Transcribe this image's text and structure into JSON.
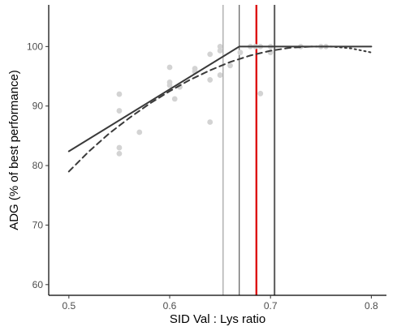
{
  "chart_data": {
    "type": "scatter",
    "xlabel": "SID Val : Lys ratio",
    "ylabel": "ADG (% of best performance)",
    "xlim": [
      0.48,
      0.815
    ],
    "ylim": [
      58.2,
      107
    ],
    "x_ticks": [
      0.5,
      0.6,
      0.7,
      0.8
    ],
    "x_tick_labels": [
      "0.5",
      "0.6",
      "0.7",
      "0.8"
    ],
    "y_ticks": [
      60,
      70,
      80,
      90,
      100
    ],
    "y_tick_labels": [
      "60",
      "70",
      "80",
      "90",
      "100"
    ],
    "grid": false,
    "legend": "none",
    "points": [
      [
        0.55,
        92.0
      ],
      [
        0.55,
        89.2
      ],
      [
        0.55,
        83.0
      ],
      [
        0.55,
        82.0
      ],
      [
        0.57,
        85.6
      ],
      [
        0.6,
        96.5
      ],
      [
        0.6,
        94.0
      ],
      [
        0.6,
        93.5
      ],
      [
        0.605,
        91.2
      ],
      [
        0.61,
        93.2
      ],
      [
        0.625,
        96.3
      ],
      [
        0.625,
        95.8
      ],
      [
        0.64,
        98.7
      ],
      [
        0.64,
        94.4
      ],
      [
        0.64,
        87.3
      ],
      [
        0.65,
        100.0
      ],
      [
        0.65,
        99.3
      ],
      [
        0.65,
        95.2
      ],
      [
        0.66,
        96.8
      ],
      [
        0.67,
        99.0
      ],
      [
        0.68,
        100.0
      ],
      [
        0.685,
        100.0
      ],
      [
        0.69,
        92.1
      ],
      [
        0.69,
        100.0
      ],
      [
        0.7,
        100.0
      ],
      [
        0.7,
        99.0
      ],
      [
        0.73,
        100.0
      ],
      [
        0.75,
        100.0
      ],
      [
        0.755,
        100.0
      ]
    ],
    "series": [
      {
        "style": "solid",
        "points": [
          [
            0.5,
            82.4
          ],
          [
            0.669,
            100.0
          ],
          [
            0.8,
            100.0
          ]
        ]
      },
      {
        "style": "dashed",
        "points": [
          [
            0.5,
            79.0
          ],
          [
            0.52,
            82.4
          ],
          [
            0.54,
            85.4
          ],
          [
            0.56,
            88.0
          ],
          [
            0.58,
            90.4
          ],
          [
            0.6,
            92.5
          ],
          [
            0.62,
            94.4
          ],
          [
            0.64,
            96.0
          ],
          [
            0.66,
            97.4
          ],
          [
            0.68,
            98.5
          ],
          [
            0.7,
            99.3
          ],
          [
            0.72,
            99.8
          ],
          [
            0.74,
            100.0
          ]
        ]
      },
      {
        "style": "dotted",
        "points": [
          [
            0.74,
            100.0
          ],
          [
            0.76,
            100.0
          ],
          [
            0.78,
            99.7
          ],
          [
            0.8,
            99.0
          ]
        ]
      }
    ],
    "vlines": [
      {
        "x": 0.653,
        "color": "#8c8c8c",
        "width": 1
      },
      {
        "x": 0.669,
        "color": "#5a5a5a",
        "width": 1.2
      },
      {
        "x": 0.686,
        "color": "#dd1111",
        "width": 2.4
      },
      {
        "x": 0.704,
        "color": "#5a5a5a",
        "width": 2
      }
    ],
    "colors": {
      "points": "#d3d3d3",
      "lines": "#3a3a3a",
      "axis": "#000000"
    }
  }
}
